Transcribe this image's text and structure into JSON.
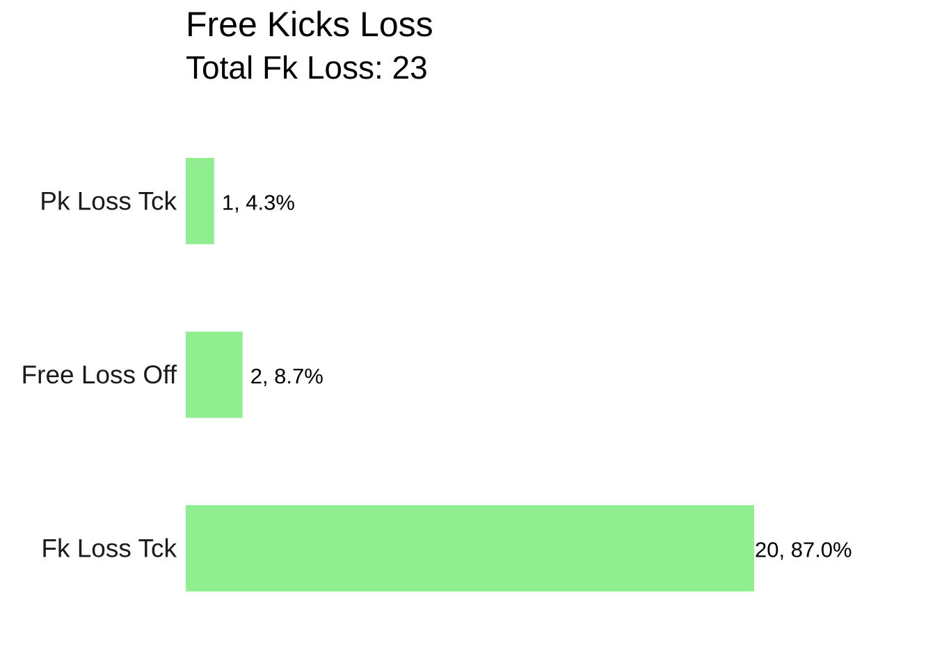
{
  "chart_data": {
    "type": "bar",
    "orientation": "horizontal",
    "title": "Free Kicks Loss",
    "subtitle": "Total Fk Loss: 23",
    "categories": [
      "Pk Loss Tck",
      "Free Loss Off",
      "Fk Loss Tck"
    ],
    "values": [
      1,
      2,
      20
    ],
    "data_labels": [
      "1, 4.3%",
      "2, 8.7%",
      "20, 87.0%"
    ],
    "xlabel": "",
    "ylabel": "",
    "grid": false,
    "legend": "none",
    "bar_color": "#90EE90"
  }
}
